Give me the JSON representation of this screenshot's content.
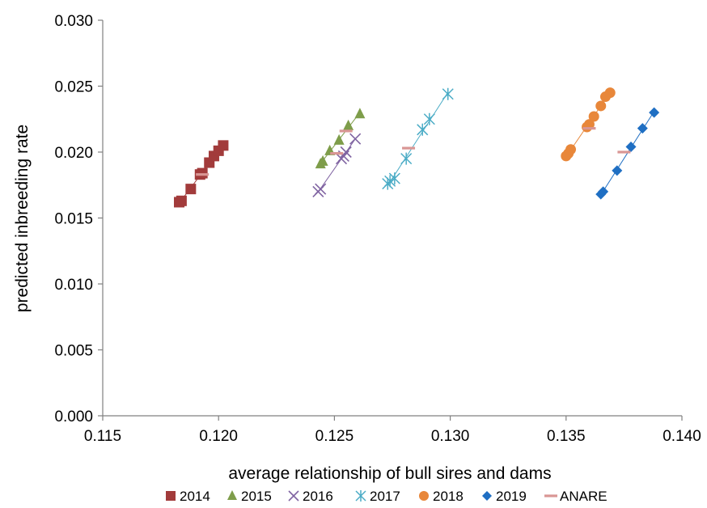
{
  "chart_data": {
    "type": "scatter",
    "title": "",
    "xlabel": "average relationship of bull sires and dams",
    "ylabel": "predicted inbreeding rate",
    "xlim": [
      0.115,
      0.14
    ],
    "ylim": [
      0.0,
      0.03
    ],
    "x_ticks": [
      "0.115",
      "0.120",
      "0.125",
      "0.130",
      "0.135",
      "0.140"
    ],
    "y_ticks": [
      "0.000",
      "0.005",
      "0.010",
      "0.015",
      "0.020",
      "0.025",
      "0.030"
    ],
    "grid": false,
    "legend_position": "bottom",
    "series": [
      {
        "name": "2014",
        "marker": "square",
        "color": "#A23B3B",
        "trendline": true,
        "points": [
          [
            0.1183,
            0.0162
          ],
          [
            0.1184,
            0.0163
          ],
          [
            0.1188,
            0.0172
          ],
          [
            0.1192,
            0.0183
          ],
          [
            0.1193,
            0.0184
          ],
          [
            0.1196,
            0.0192
          ],
          [
            0.1198,
            0.0197
          ],
          [
            0.12,
            0.0201
          ],
          [
            0.1202,
            0.0205
          ]
        ]
      },
      {
        "name": "2015",
        "marker": "triangle",
        "color": "#7E9D4A",
        "trendline": true,
        "points": [
          [
            0.1244,
            0.0191
          ],
          [
            0.1245,
            0.0193
          ],
          [
            0.1248,
            0.0201
          ],
          [
            0.1252,
            0.0209
          ],
          [
            0.1256,
            0.022
          ],
          [
            0.1261,
            0.0229
          ]
        ]
      },
      {
        "name": "2016",
        "marker": "x",
        "color": "#8064A2",
        "trendline": true,
        "points": [
          [
            0.1243,
            0.017
          ],
          [
            0.1244,
            0.0172
          ],
          [
            0.1253,
            0.0195
          ],
          [
            0.1254,
            0.0197
          ],
          [
            0.1255,
            0.02
          ],
          [
            0.1259,
            0.021
          ]
        ]
      },
      {
        "name": "2017",
        "marker": "star",
        "color": "#4BACC6",
        "trendline": true,
        "points": [
          [
            0.1273,
            0.0176
          ],
          [
            0.1274,
            0.0178
          ],
          [
            0.1276,
            0.018
          ],
          [
            0.1281,
            0.0195
          ],
          [
            0.1288,
            0.0217
          ],
          [
            0.1291,
            0.0225
          ],
          [
            0.1299,
            0.0244
          ]
        ]
      },
      {
        "name": "2018",
        "marker": "circle",
        "color": "#E8873A",
        "trendline": true,
        "points": [
          [
            0.135,
            0.0197
          ],
          [
            0.1351,
            0.0199
          ],
          [
            0.1352,
            0.0202
          ],
          [
            0.1359,
            0.0219
          ],
          [
            0.136,
            0.0221
          ],
          [
            0.1362,
            0.0227
          ],
          [
            0.1365,
            0.0235
          ],
          [
            0.1367,
            0.0242
          ],
          [
            0.1369,
            0.0245
          ]
        ]
      },
      {
        "name": "2019",
        "marker": "diamond",
        "color": "#1F6FC3",
        "trendline": true,
        "points": [
          [
            0.1365,
            0.0168
          ],
          [
            0.1366,
            0.017
          ],
          [
            0.1372,
            0.0186
          ],
          [
            0.1378,
            0.0204
          ],
          [
            0.1383,
            0.0218
          ],
          [
            0.1388,
            0.023
          ]
        ]
      },
      {
        "name": "ANARE",
        "marker": "dash",
        "color": "#D99694",
        "trendline": false,
        "points": [
          [
            0.1193,
            0.0183
          ],
          [
            0.1251,
            0.0199
          ],
          [
            0.1255,
            0.0216
          ],
          [
            0.1282,
            0.0203
          ],
          [
            0.136,
            0.0218
          ],
          [
            0.1375,
            0.02
          ]
        ]
      }
    ]
  }
}
